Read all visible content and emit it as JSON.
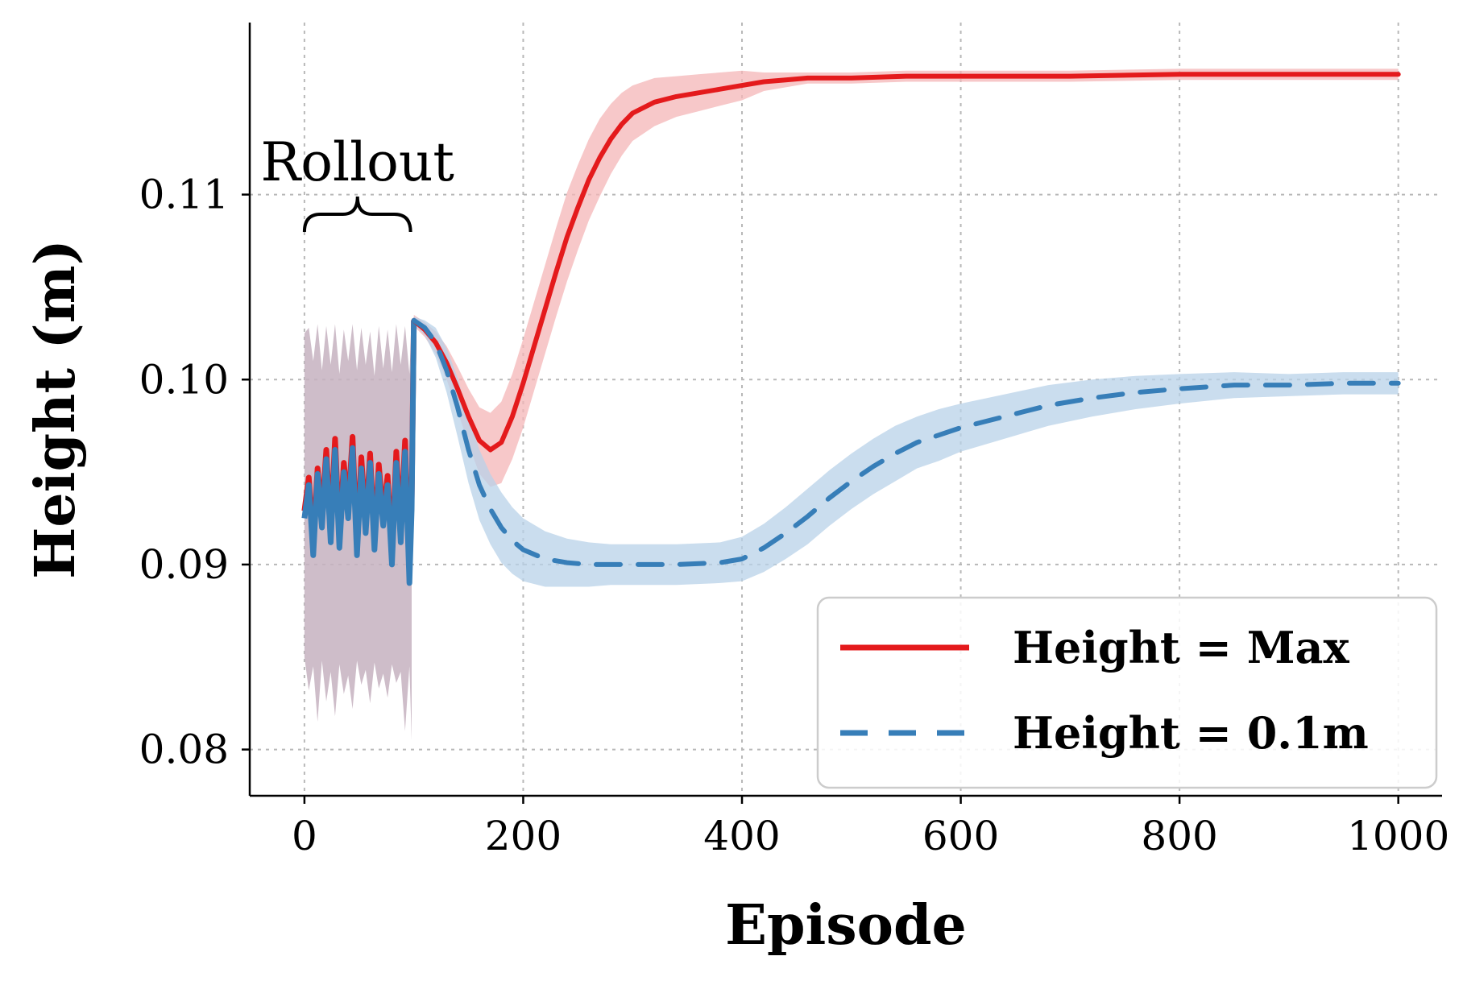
{
  "chart_data": {
    "type": "line",
    "title": "",
    "xlabel": "Episode",
    "ylabel": "Height (m)",
    "xlim": [
      -50,
      1040
    ],
    "ylim": [
      0.0775,
      0.1193
    ],
    "xticks": [
      0,
      200,
      400,
      600,
      800,
      1000
    ],
    "xtick_labels": [
      "0",
      "200",
      "400",
      "600",
      "800",
      "1000"
    ],
    "yticks": [
      0.08,
      0.09,
      0.1,
      0.11
    ],
    "ytick_labels": [
      "0.08",
      "0.09",
      "0.10",
      "0.11"
    ],
    "grid": true,
    "legend_position": "bottom-right",
    "annotation": {
      "text": "Rollout",
      "x_start": 0,
      "x_end": 97
    },
    "series": [
      {
        "name": "Height = Max",
        "color": "#e41a1c",
        "style": "solid",
        "x": [
          100,
          110,
          120,
          130,
          140,
          150,
          160,
          170,
          180,
          190,
          200,
          210,
          220,
          230,
          240,
          250,
          260,
          270,
          280,
          290,
          300,
          320,
          340,
          360,
          380,
          400,
          420,
          440,
          460,
          500,
          550,
          600,
          700,
          800,
          900,
          1000
        ],
        "y": [
          0.1032,
          0.1027,
          0.102,
          0.1009,
          0.0995,
          0.098,
          0.0967,
          0.0962,
          0.0966,
          0.098,
          0.0998,
          0.1018,
          0.1038,
          0.1058,
          0.1077,
          0.1093,
          0.1108,
          0.112,
          0.113,
          0.1138,
          0.1144,
          0.115,
          0.1153,
          0.1155,
          0.1157,
          0.1159,
          0.1161,
          0.1162,
          0.1163,
          0.1163,
          0.1164,
          0.1164,
          0.1164,
          0.1165,
          0.1165,
          0.1165
        ],
        "band_half_width": [
          0.0003,
          0.0004,
          0.0006,
          0.0009,
          0.0012,
          0.0015,
          0.0018,
          0.002,
          0.0022,
          0.0023,
          0.0024,
          0.0024,
          0.0024,
          0.0024,
          0.0024,
          0.0023,
          0.0022,
          0.0021,
          0.0019,
          0.0017,
          0.0015,
          0.0013,
          0.0011,
          0.001,
          0.0009,
          0.0008,
          0.0005,
          0.0004,
          0.0003,
          0.0003,
          0.0003,
          0.0003,
          0.0003,
          0.0003,
          0.0003,
          0.0003
        ]
      },
      {
        "name": "Height = 0.1m",
        "color": "#377eb8",
        "style": "dashed",
        "x": [
          100,
          110,
          120,
          130,
          140,
          150,
          160,
          170,
          180,
          190,
          200,
          220,
          240,
          260,
          280,
          300,
          340,
          380,
          400,
          420,
          440,
          460,
          480,
          500,
          520,
          540,
          560,
          580,
          600,
          640,
          680,
          720,
          760,
          800,
          850,
          900,
          950,
          1000
        ],
        "y": [
          0.1032,
          0.1028,
          0.102,
          0.1005,
          0.0985,
          0.0962,
          0.0943,
          0.093,
          0.092,
          0.0913,
          0.0908,
          0.0903,
          0.0901,
          0.09,
          0.09,
          0.09,
          0.09,
          0.0901,
          0.0903,
          0.0909,
          0.0917,
          0.0926,
          0.0936,
          0.0945,
          0.0953,
          0.096,
          0.0966,
          0.097,
          0.0974,
          0.098,
          0.0986,
          0.099,
          0.0993,
          0.0995,
          0.0997,
          0.0997,
          0.0998,
          0.0998
        ],
        "band_half_width": [
          0.0002,
          0.0004,
          0.0008,
          0.0012,
          0.0016,
          0.0018,
          0.0019,
          0.0019,
          0.0019,
          0.0018,
          0.0017,
          0.0015,
          0.0013,
          0.0012,
          0.0011,
          0.0011,
          0.0011,
          0.0011,
          0.0012,
          0.0013,
          0.0014,
          0.0015,
          0.0015,
          0.0015,
          0.0015,
          0.0015,
          0.0014,
          0.0014,
          0.0013,
          0.0012,
          0.0011,
          0.001,
          0.0009,
          0.0008,
          0.0007,
          0.0006,
          0.0006,
          0.0006
        ]
      }
    ],
    "rollout": {
      "x": [
        0,
        4,
        8,
        12,
        16,
        20,
        24,
        28,
        32,
        36,
        40,
        44,
        48,
        52,
        56,
        60,
        64,
        68,
        72,
        76,
        80,
        84,
        88,
        92,
        96,
        98
      ],
      "y_max": [
        0.0929,
        0.0947,
        0.0912,
        0.0952,
        0.0926,
        0.0962,
        0.0918,
        0.0968,
        0.0915,
        0.0955,
        0.093,
        0.0969,
        0.091,
        0.0958,
        0.0922,
        0.096,
        0.0913,
        0.0954,
        0.0926,
        0.0948,
        0.0905,
        0.0961,
        0.0918,
        0.0967,
        0.0895,
        0.0935
      ],
      "y_01": [
        0.0925,
        0.0943,
        0.0905,
        0.0949,
        0.092,
        0.0957,
        0.0912,
        0.0962,
        0.0909,
        0.095,
        0.0925,
        0.0963,
        0.0905,
        0.0952,
        0.0917,
        0.0955,
        0.0908,
        0.0949,
        0.0921,
        0.0943,
        0.09,
        0.0955,
        0.0912,
        0.0961,
        0.089,
        0.093
      ],
      "band_upper": [
        0.1025,
        0.1028,
        0.101,
        0.103,
        0.1005,
        0.1029,
        0.1008,
        0.103,
        0.1003,
        0.1027,
        0.101,
        0.103,
        0.1005,
        0.1028,
        0.1008,
        0.1026,
        0.1002,
        0.1029,
        0.1006,
        0.1027,
        0.1004,
        0.103,
        0.1008,
        0.1029,
        0.1003,
        0.103
      ],
      "band_lower": [
        0.085,
        0.0832,
        0.0845,
        0.0815,
        0.0848,
        0.0826,
        0.0842,
        0.0818,
        0.0846,
        0.083,
        0.084,
        0.0822,
        0.0848,
        0.0835,
        0.0843,
        0.0825,
        0.0847,
        0.0833,
        0.0841,
        0.0828,
        0.0846,
        0.0836,
        0.0842,
        0.081,
        0.0845,
        0.0805
      ],
      "band_color": "#c5b1c0"
    }
  }
}
